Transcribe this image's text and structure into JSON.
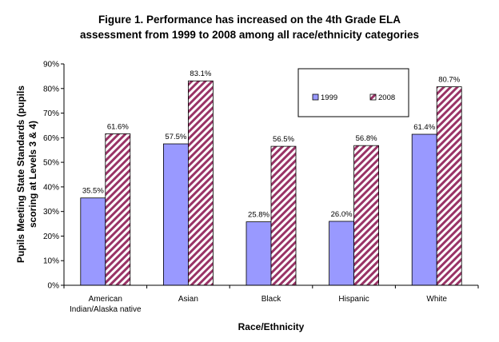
{
  "chart_data": {
    "type": "bar",
    "title_line1": "Figure 1.  Performance has increased on the 4th Grade ELA",
    "title_line2": "assessment from 1999 to 2008 among all race/ethnicity categories",
    "xlabel": "Race/Ethnicity",
    "ylabel_line1": "Pupils Meeting State Standards (pupils",
    "ylabel_line2": "scoring at Levels 3 & 4)",
    "categories": [
      [
        "American",
        "Indian/Alaska native"
      ],
      [
        "Asian"
      ],
      [
        "Black"
      ],
      [
        "Hispanic"
      ],
      [
        "White"
      ]
    ],
    "ylim": [
      0,
      90
    ],
    "yticks": [
      "0%",
      "10%",
      "20%",
      "30%",
      "40%",
      "50%",
      "60%",
      "70%",
      "80%",
      "90%"
    ],
    "grid": false,
    "legend_position": "top-right",
    "series": [
      {
        "name": "1999",
        "values": [
          35.5,
          57.5,
          25.8,
          26.0,
          61.4
        ],
        "labels": [
          "35.5%",
          "57.5%",
          "25.8%",
          "26.0%",
          "61.4%"
        ],
        "color": "#9999ff",
        "pattern": "solid"
      },
      {
        "name": "2008",
        "values": [
          61.6,
          83.1,
          56.5,
          56.8,
          80.7
        ],
        "labels": [
          "61.6%",
          "83.1%",
          "56.5%",
          "56.8%",
          "80.7%"
        ],
        "color": "#993366",
        "pattern": "diagonal-stripes"
      }
    ]
  }
}
